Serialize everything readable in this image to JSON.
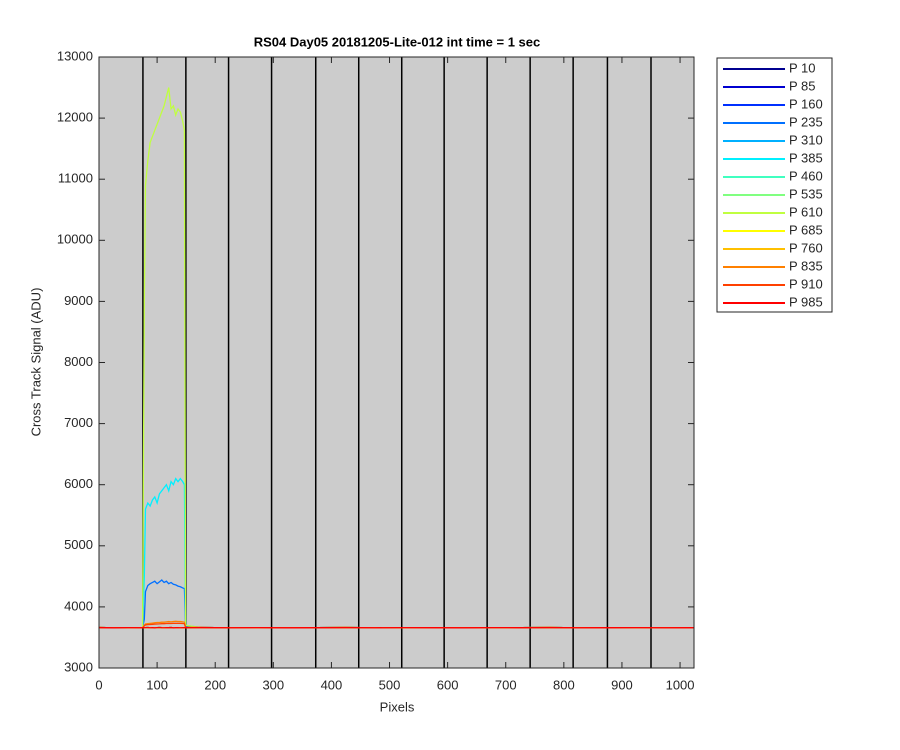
{
  "chart_data": {
    "type": "line",
    "title": "RS04 Day05 20181205-Lite-012 int time = 1 sec",
    "x_label": "Pixels",
    "y_label": "Cross Track Signal (ADU)",
    "xlim": [
      0,
      1024
    ],
    "ylim": [
      3000,
      13000
    ],
    "xticks": [
      0,
      100,
      200,
      300,
      400,
      500,
      600,
      700,
      800,
      900,
      1000
    ],
    "yticks": [
      3000,
      4000,
      5000,
      6000,
      7000,
      8000,
      9000,
      10000,
      11000,
      12000,
      13000
    ],
    "background": "#cccccc",
    "legend": "outside-right",
    "vlines": [
      75.6,
      149.5,
      223,
      297,
      373,
      447,
      521,
      594,
      668,
      742,
      816,
      875,
      950
    ],
    "x": [
      0,
      25,
      50,
      75,
      78,
      80,
      84,
      88,
      92,
      96,
      100,
      104,
      108,
      112,
      116,
      120,
      124,
      128,
      132,
      136,
      140,
      144,
      147,
      149,
      175,
      225,
      275,
      325,
      375,
      425,
      475,
      525,
      575,
      625,
      675,
      725,
      775,
      825,
      875,
      925,
      975,
      1024
    ],
    "series": [
      {
        "name": "P 10",
        "color": "#000090",
        "values": [
          3662,
          3658,
          3661,
          3659,
          3660,
          3661,
          3662,
          3659,
          3660,
          3658,
          3661,
          3663,
          3660,
          3659,
          3661,
          3660,
          3662,
          3658,
          3660,
          3661,
          3659,
          3660,
          3661,
          3660,
          3662,
          3659,
          3661,
          3658,
          3660,
          3662,
          3659,
          3661,
          3660,
          3658,
          3661,
          3660,
          3662,
          3659,
          3660,
          3661,
          3659,
          3660
        ]
      },
      {
        "name": "P 85",
        "color": "#0000d0",
        "values": [
          3662,
          3658,
          3661,
          3659,
          3660,
          3661,
          3662,
          3659,
          3660,
          3658,
          3661,
          3663,
          3660,
          3659,
          3661,
          3660,
          3662,
          3658,
          3660,
          3661,
          3659,
          3660,
          3661,
          3660,
          3662,
          3659,
          3661,
          3658,
          3660,
          3662,
          3659,
          3661,
          3660,
          3658,
          3661,
          3660,
          3662,
          3659,
          3660,
          3661,
          3659,
          3660
        ]
      },
      {
        "name": "P 160",
        "color": "#0030ff",
        "values": [
          3662,
          3658,
          3661,
          3659,
          3660,
          3661,
          3662,
          3659,
          3660,
          3658,
          3661,
          3663,
          3660,
          3659,
          3661,
          3660,
          3662,
          3658,
          3660,
          3661,
          3659,
          3660,
          3661,
          3660,
          3662,
          3659,
          3661,
          3658,
          3660,
          3662,
          3659,
          3661,
          3660,
          3658,
          3661,
          3660,
          3662,
          3659,
          3660,
          3661,
          3659,
          3660
        ]
      },
      {
        "name": "P 235",
        "color": "#0070ff",
        "values": [
          3662,
          3658,
          3661,
          3659,
          3800,
          4250,
          4350,
          4380,
          4400,
          4420,
          4380,
          4410,
          4440,
          4400,
          4420,
          4380,
          4400,
          4370,
          4360,
          4340,
          4330,
          4310,
          4300,
          3680,
          3662,
          3659,
          3661,
          3658,
          3660,
          3662,
          3659,
          3661,
          3660,
          3658,
          3661,
          3660,
          3662,
          3659,
          3660,
          3661,
          3659,
          3660
        ]
      },
      {
        "name": "P 310",
        "color": "#00b0ff",
        "values": [
          3662,
          3658,
          3661,
          3659,
          3660,
          3661,
          3662,
          3659,
          3660,
          3658,
          3661,
          3663,
          3660,
          3659,
          3661,
          3660,
          3662,
          3658,
          3660,
          3661,
          3659,
          3660,
          3661,
          3660,
          3662,
          3659,
          3661,
          3658,
          3660,
          3662,
          3659,
          3661,
          3660,
          3658,
          3661,
          3660,
          3662,
          3659,
          3660,
          3661,
          3659,
          3660
        ]
      },
      {
        "name": "P 385",
        "color": "#00f0ff",
        "values": [
          3662,
          3658,
          3661,
          3659,
          4500,
          5600,
          5700,
          5650,
          5750,
          5800,
          5700,
          5850,
          5900,
          5950,
          6000,
          5900,
          6050,
          6000,
          6100,
          6050,
          6100,
          6050,
          6000,
          3700,
          3662,
          3659,
          3661,
          3658,
          3660,
          3662,
          3659,
          3661,
          3660,
          3658,
          3661,
          3660,
          3662,
          3659,
          3660,
          3661,
          3659,
          3660
        ]
      },
      {
        "name": "P 460",
        "color": "#40ffc0",
        "values": [
          3662,
          3658,
          3661,
          3659,
          3660,
          3661,
          3662,
          3659,
          3660,
          3658,
          3661,
          3663,
          3660,
          3659,
          3661,
          3660,
          3662,
          3658,
          3660,
          3661,
          3659,
          3660,
          3661,
          3660,
          3662,
          3659,
          3661,
          3658,
          3660,
          3662,
          3659,
          3661,
          3660,
          3658,
          3661,
          3660,
          3662,
          3659,
          3660,
          3661,
          3659,
          3660
        ]
      },
      {
        "name": "P 535",
        "color": "#80ff80",
        "values": [
          3662,
          3658,
          3661,
          3659,
          3660,
          3661,
          3662,
          3659,
          3660,
          3658,
          3661,
          3663,
          3660,
          3659,
          3661,
          3660,
          3662,
          3658,
          3660,
          3661,
          3659,
          3660,
          3661,
          3660,
          3662,
          3659,
          3661,
          3658,
          3660,
          3662,
          3659,
          3661,
          3660,
          3658,
          3661,
          3660,
          3662,
          3659,
          3660,
          3661,
          3659,
          3660
        ]
      },
      {
        "name": "P 610",
        "color": "#c0ff40",
        "values": [
          3662,
          3658,
          3661,
          3659,
          9000,
          10900,
          11300,
          11600,
          11700,
          11800,
          11900,
          12000,
          12100,
          12200,
          12350,
          12500,
          12150,
          12200,
          12050,
          12150,
          12100,
          11950,
          11800,
          3700,
          3662,
          3659,
          3661,
          3658,
          3660,
          3662,
          3659,
          3661,
          3660,
          3658,
          3661,
          3660,
          3662,
          3659,
          3660,
          3661,
          3659,
          3660
        ]
      },
      {
        "name": "P 685",
        "color": "#ffff00",
        "values": [
          3662,
          3658,
          3661,
          3659,
          3660,
          3661,
          3662,
          3659,
          3660,
          3658,
          3661,
          3663,
          3660,
          3659,
          3661,
          3660,
          3662,
          3658,
          3660,
          3661,
          3659,
          3660,
          3661,
          3660,
          3662,
          3659,
          3661,
          3658,
          3660,
          3662,
          3659,
          3661,
          3660,
          3658,
          3661,
          3660,
          3662,
          3659,
          3660,
          3661,
          3659,
          3660
        ]
      },
      {
        "name": "P 760",
        "color": "#ffc000",
        "values": [
          3662,
          3658,
          3661,
          3659,
          3660,
          3661,
          3662,
          3659,
          3660,
          3658,
          3661,
          3663,
          3660,
          3659,
          3661,
          3660,
          3662,
          3658,
          3660,
          3661,
          3659,
          3660,
          3661,
          3660,
          3662,
          3659,
          3661,
          3658,
          3660,
          3662,
          3659,
          3661,
          3660,
          3658,
          3661,
          3660,
          3662,
          3659,
          3660,
          3661,
          3659,
          3660
        ]
      },
      {
        "name": "P 835",
        "color": "#ff8000",
        "values": [
          3662,
          3658,
          3661,
          3659,
          3700,
          3720,
          3725,
          3730,
          3735,
          3740,
          3745,
          3745,
          3750,
          3750,
          3755,
          3760,
          3755,
          3760,
          3765,
          3760,
          3760,
          3755,
          3750,
          3665,
          3662,
          3659,
          3661,
          3658,
          3660,
          3662,
          3659,
          3661,
          3660,
          3658,
          3661,
          3660,
          3662,
          3659,
          3660,
          3661,
          3659,
          3660
        ]
      },
      {
        "name": "P 910",
        "color": "#ff4000",
        "values": [
          3662,
          3658,
          3661,
          3659,
          3690,
          3705,
          3710,
          3712,
          3715,
          3718,
          3720,
          3722,
          3725,
          3725,
          3728,
          3730,
          3728,
          3730,
          3732,
          3730,
          3730,
          3728,
          3725,
          3662,
          3662,
          3659,
          3661,
          3658,
          3660,
          3662,
          3659,
          3661,
          3660,
          3658,
          3661,
          3660,
          3662,
          3659,
          3660,
          3661,
          3659,
          3660
        ]
      },
      {
        "name": "P 985",
        "color": "#ff0000",
        "values": [
          3662,
          3658,
          3661,
          3659,
          3660,
          3661,
          3662,
          3659,
          3660,
          3658,
          3661,
          3663,
          3660,
          3659,
          3661,
          3660,
          3662,
          3658,
          3660,
          3661,
          3659,
          3660,
          3661,
          3660,
          3662,
          3659,
          3661,
          3658,
          3660,
          3662,
          3659,
          3661,
          3660,
          3658,
          3661,
          3660,
          3662,
          3659,
          3660,
          3661,
          3659,
          3660
        ]
      }
    ]
  }
}
